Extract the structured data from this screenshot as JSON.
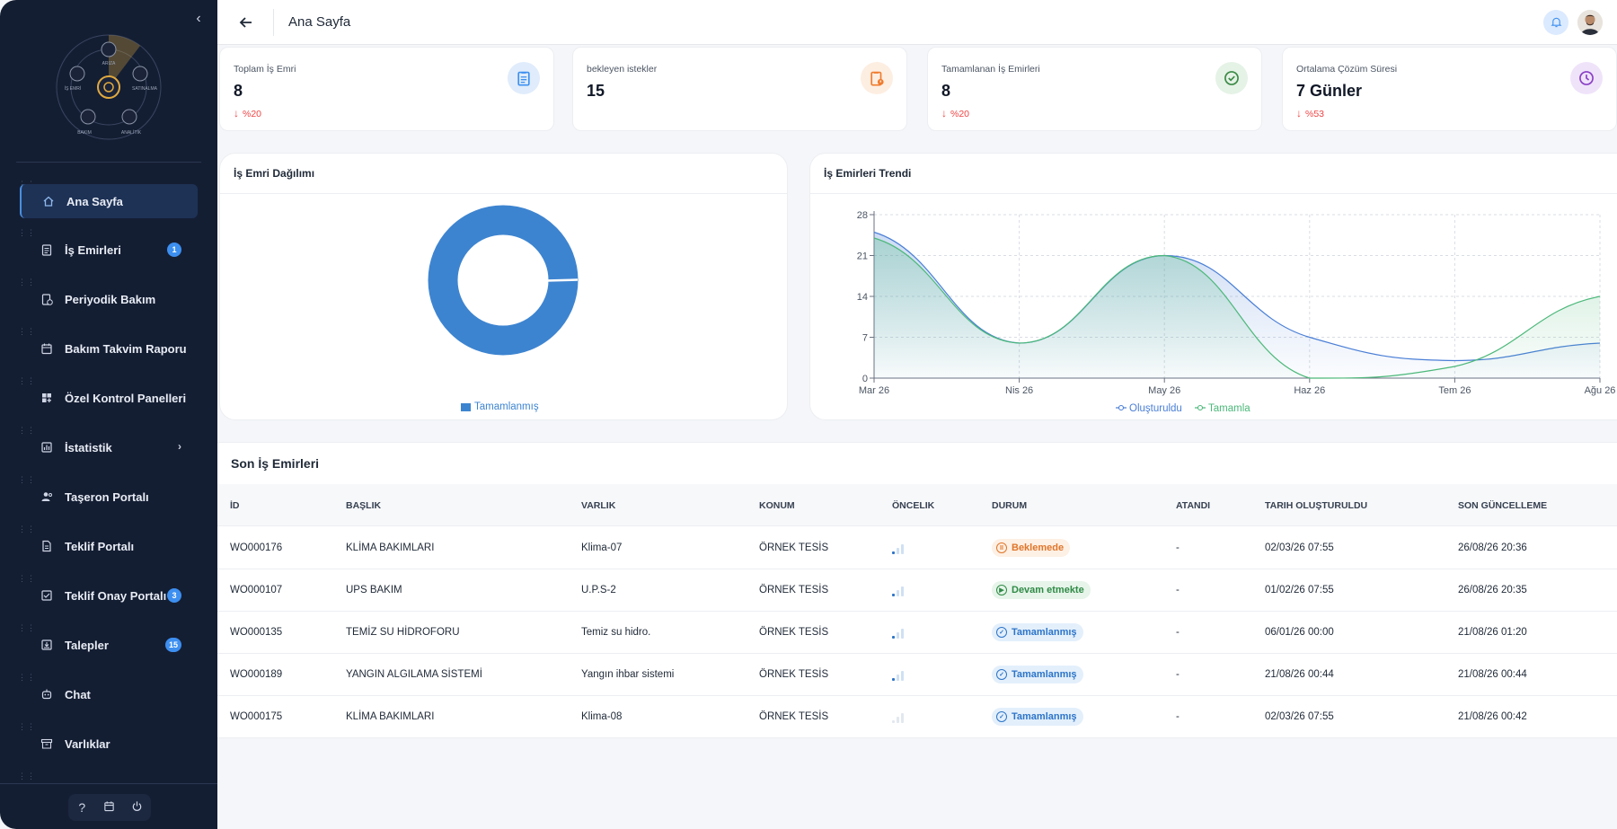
{
  "header": {
    "title": "Ana Sayfa"
  },
  "logo": {
    "labels": [
      "ARIZA",
      "SATINALMA",
      "ANALİTİK",
      "BAKIM",
      "İŞ EMRİ"
    ]
  },
  "sidebar": {
    "items": [
      {
        "label": "Ana Sayfa",
        "icon": "home-icon",
        "active": true
      },
      {
        "label": "İş Emirleri",
        "icon": "clipboard-icon",
        "badge": "1"
      },
      {
        "label": "Periyodik Bakım",
        "icon": "clipboard-clock-icon"
      },
      {
        "label": "Bakım Takvim Raporu",
        "icon": "calendar-icon"
      },
      {
        "label": "Özel Kontrol Panelleri",
        "icon": "dashboard-plus-icon"
      },
      {
        "label": "İstatistik",
        "icon": "chart-box-icon",
        "chevron": true
      },
      {
        "label": "Taşeron Portalı",
        "icon": "user-gear-icon"
      },
      {
        "label": "Teklif Portalı",
        "icon": "document-icon"
      },
      {
        "label": "Teklif Onay Portalı",
        "icon": "approval-icon",
        "badge": "3"
      },
      {
        "label": "Talepler",
        "icon": "inbox-download-icon",
        "badge": "15"
      },
      {
        "label": "Chat",
        "icon": "robot-icon"
      },
      {
        "label": "Varlıklar",
        "icon": "archive-icon"
      }
    ],
    "footer": {
      "help": "?",
      "calendar": "calendar-icon",
      "power": "power-icon"
    }
  },
  "stats": [
    {
      "label": "Toplam İş Emri",
      "value": "8",
      "change": "%20",
      "icon": "clipboard-icon",
      "color": "#3d8ff0",
      "bg": "#e0ecfb"
    },
    {
      "label": "bekleyen istekler",
      "value": "15",
      "change": "",
      "icon": "clipboard-alert-icon",
      "color": "#f07c2e",
      "bg": "#fdeee2"
    },
    {
      "label": "Tamamlanan İş Emirleri",
      "value": "8",
      "change": "%20",
      "icon": "check-circle-icon",
      "color": "#3a8a45",
      "bg": "#e5f2e6"
    },
    {
      "label": "Ortalama Çözüm Süresi",
      "value": "7 Günler",
      "change": "%53",
      "icon": "clock-icon",
      "color": "#8a3fc4",
      "bg": "#efe3fa"
    }
  ],
  "donut": {
    "title": "İş Emri Dağılımı",
    "legend": "Tamamlanmış",
    "color": "#3d84d0"
  },
  "trend": {
    "title": "İş Emirleri Trendi"
  },
  "chart_data": {
    "type": "area",
    "title": "İş Emirleri Trendi",
    "x": [
      "Mar 26",
      "Nis 26",
      "May 26",
      "Haz 26",
      "Tem 26",
      "Ağu 26"
    ],
    "ylim": [
      0,
      28
    ],
    "yticks": [
      0,
      7,
      14,
      21,
      28
    ],
    "grid": true,
    "legend_position": "bottom",
    "series": [
      {
        "name": "Oluşturuldu",
        "values": [
          25,
          6,
          21,
          7,
          3,
          6
        ],
        "color": "#4a7fd6"
      },
      {
        "name": "Tamamla",
        "values": [
          24,
          6,
          21,
          0,
          2,
          14
        ],
        "color": "#4cb87a"
      }
    ]
  },
  "table": {
    "title": "Son İş Emirleri",
    "columns": [
      "İD",
      "BAŞLIK",
      "VARLIK",
      "KONUM",
      "ÖNCELIK",
      "DURUM",
      "ATANDI",
      "TARIH OLUŞTURULDU",
      "SON GÜNCELLEME"
    ],
    "rows": [
      {
        "id": "WO000176",
        "title": "KLİMA BAKIMLARI",
        "asset": "Klima-07",
        "location": "ÖRNEK TESİS",
        "priority": 1,
        "status": "Beklemede",
        "status_type": "pending",
        "assigned": "-",
        "created": "02/03/26 07:55",
        "updated": "26/08/26 20:36"
      },
      {
        "id": "WO000107",
        "title": "UPS BAKIM",
        "asset": "U.P.S-2",
        "location": "ÖRNEK TESİS",
        "priority": 1,
        "status": "Devam etmekte",
        "status_type": "progress",
        "assigned": "-",
        "created": "01/02/26 07:55",
        "updated": "26/08/26 20:35"
      },
      {
        "id": "WO000135",
        "title": "TEMİZ SU HİDROFORU",
        "asset": "Temiz su hidro.",
        "location": "ÖRNEK TESİS",
        "priority": 1,
        "status": "Tamamlanmış",
        "status_type": "done",
        "assigned": "-",
        "created": "06/01/26 00:00",
        "updated": "21/08/26 01:20"
      },
      {
        "id": "WO000189",
        "title": "YANGIN ALGILAMA SİSTEMİ",
        "asset": "Yangın ihbar sistemi",
        "location": "ÖRNEK TESİS",
        "priority": 1,
        "status": "Tamamlanmış",
        "status_type": "done",
        "assigned": "-",
        "created": "21/08/26 00:44",
        "updated": "21/08/26 00:44"
      },
      {
        "id": "WO000175",
        "title": "KLİMA BAKIMLARI",
        "asset": "Klima-08",
        "location": "ÖRNEK TESİS",
        "priority": 0,
        "status": "Tamamlanmış",
        "status_type": "done",
        "assigned": "-",
        "created": "02/03/26 07:55",
        "updated": "21/08/26 00:42"
      }
    ]
  }
}
